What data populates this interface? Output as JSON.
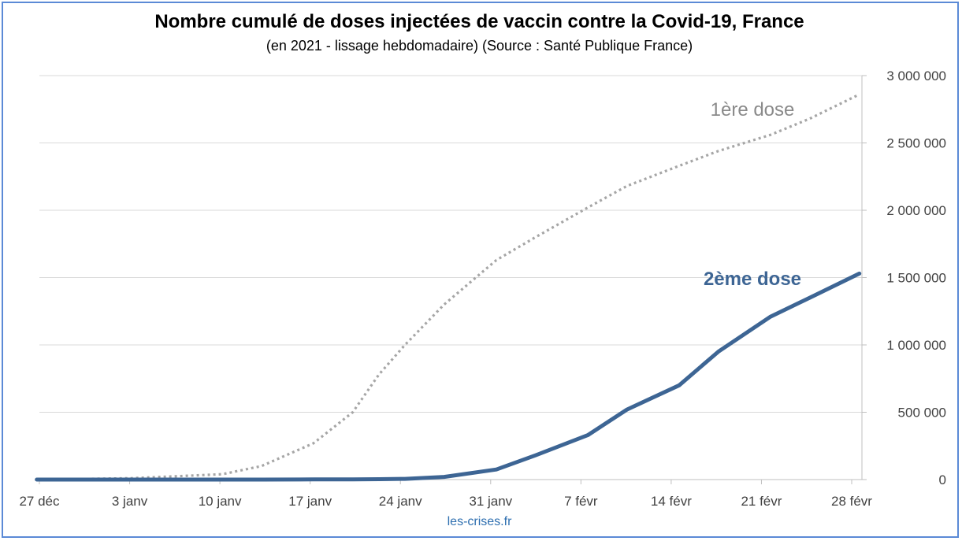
{
  "chart_data": {
    "type": "line",
    "title": "Nombre cumulé de doses injectées de vaccin contre la Covid-19, France",
    "subtitle": "(en 2021 - lissage hebdomadaire) (Source : Santé Publique France)",
    "credit": "les-crises.fr",
    "x_ticks": [
      "27 déc",
      "3 janv",
      "10 janv",
      "17 janv",
      "24 janv",
      "31 janv",
      "7 févr",
      "14 févr",
      "21 févr",
      "28 févr"
    ],
    "y_ticks": [
      {
        "value": 0,
        "label": "0"
      },
      {
        "value": 500000,
        "label": "500 000"
      },
      {
        "value": 1000000,
        "label": "1 000 000"
      },
      {
        "value": 1500000,
        "label": "1 500 000"
      },
      {
        "value": 2000000,
        "label": "2 000 000"
      },
      {
        "value": 2500000,
        "label": "2 500 000"
      },
      {
        "value": 3000000,
        "label": "3 000 000"
      }
    ],
    "ylim": [
      0,
      3000000
    ],
    "y_axis_position": "right",
    "grid": true,
    "x_unit": "days",
    "x": [
      -0.2,
      7,
      14,
      17,
      21,
      24,
      26,
      28,
      31,
      35,
      38,
      42,
      45,
      49,
      52,
      56,
      59,
      62.8
    ],
    "series": [
      {
        "name": "1ère dose",
        "color": "#a6a6a6",
        "style": "dotted",
        "values": [
          0,
          10000,
          40000,
          100000,
          270000,
          500000,
          780000,
          1000000,
          1300000,
          1630000,
          1800000,
          2020000,
          2180000,
          2330000,
          2440000,
          2560000,
          2680000,
          2860000
        ]
      },
      {
        "name": "2ème dose",
        "color": "#3d6594",
        "style": "solid",
        "values": [
          0,
          0,
          0,
          0,
          1000,
          2000,
          3000,
          5000,
          20000,
          75000,
          180000,
          330000,
          520000,
          700000,
          950000,
          1210000,
          1350000,
          1530000
        ]
      }
    ]
  }
}
